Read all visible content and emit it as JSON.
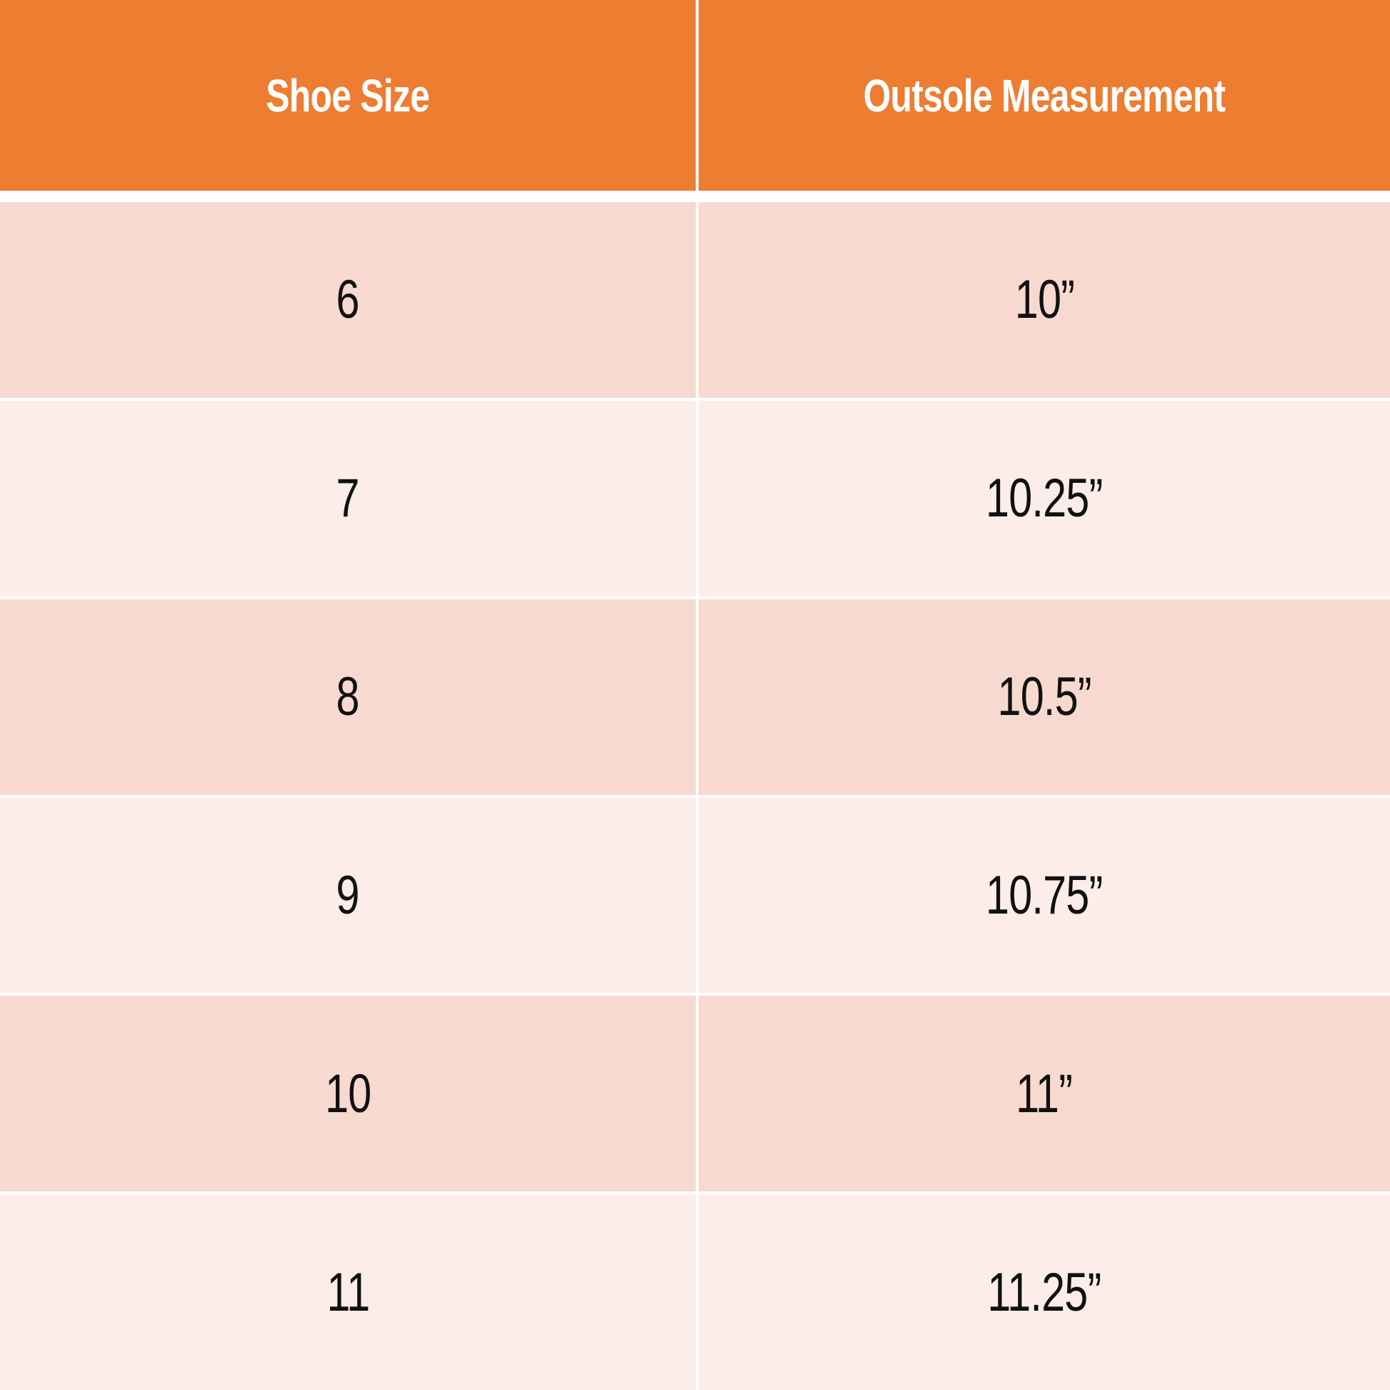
{
  "table": {
    "header": [
      "Shoe Size",
      "Outsole Measurement"
    ],
    "rows": [
      [
        "6",
        "10”"
      ],
      [
        "7",
        "10.25”"
      ],
      [
        "8",
        "10.5”"
      ],
      [
        "9",
        "10.75”"
      ],
      [
        "10",
        "11”"
      ],
      [
        "11",
        "11.25”"
      ]
    ]
  }
}
